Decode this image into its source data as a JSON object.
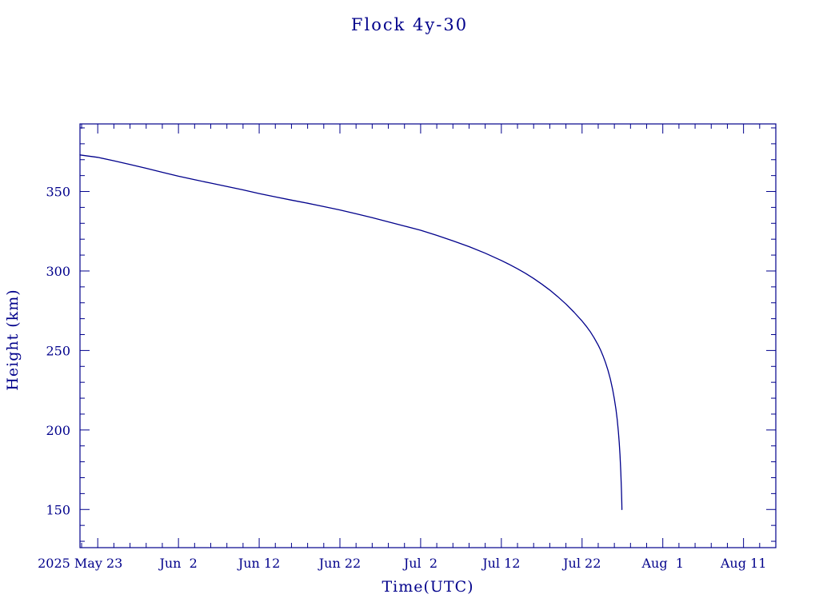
{
  "chart_data": {
    "type": "line",
    "title": "Flock 4y-30",
    "xlabel": "Time(UTC)",
    "ylabel": "Height (km)",
    "line_color": "#00008b",
    "axis_color": "#00008b",
    "background_color": "#ffffff",
    "grid": false,
    "legend": "none",
    "x_axis": {
      "tick_labels": [
        "2025 May 23",
        "Jun  2",
        "Jun 12",
        "Jun 22",
        "Jul  2",
        "Jul 12",
        "Jul 22",
        "Aug  1",
        "Aug 11"
      ],
      "tick_days": [
        0,
        10,
        20,
        30,
        40,
        50,
        60,
        70,
        80
      ],
      "minor_step_days": 2,
      "lim_days": [
        -2.2,
        84.0
      ]
    },
    "y_axis": {
      "tick_values": [
        150,
        200,
        250,
        300,
        350
      ],
      "minor_step": 10,
      "lim": [
        126,
        392.5
      ]
    },
    "series": [
      {
        "name": "height",
        "points_day_km": [
          [
            -2.2,
            373.0
          ],
          [
            0,
            371.5
          ],
          [
            2,
            369.3
          ],
          [
            4,
            367.0
          ],
          [
            6,
            364.6
          ],
          [
            8,
            362.1
          ],
          [
            10,
            359.6
          ],
          [
            12,
            357.4
          ],
          [
            14,
            355.3
          ],
          [
            16,
            353.2
          ],
          [
            18,
            351.0
          ],
          [
            20,
            348.7
          ],
          [
            22,
            346.6
          ],
          [
            24,
            344.6
          ],
          [
            26,
            342.6
          ],
          [
            28,
            340.5
          ],
          [
            30,
            338.4
          ],
          [
            32,
            336.0
          ],
          [
            34,
            333.5
          ],
          [
            36,
            330.9
          ],
          [
            38,
            328.3
          ],
          [
            40,
            325.6
          ],
          [
            42,
            322.4
          ],
          [
            44,
            319.0
          ],
          [
            46,
            315.3
          ],
          [
            48,
            311.2
          ],
          [
            50,
            306.6
          ],
          [
            51,
            304.1
          ],
          [
            52,
            301.4
          ],
          [
            53,
            298.5
          ],
          [
            54,
            295.3
          ],
          [
            55,
            291.8
          ],
          [
            56,
            288.0
          ],
          [
            57,
            283.8
          ],
          [
            58,
            279.2
          ],
          [
            59,
            274.1
          ],
          [
            60,
            268.5
          ],
          [
            60.5,
            265.4
          ],
          [
            61,
            261.9
          ],
          [
            61.5,
            257.9
          ],
          [
            62,
            253.3
          ],
          [
            62.3,
            250.2
          ],
          [
            62.6,
            246.6
          ],
          [
            62.9,
            242.5
          ],
          [
            63.2,
            237.7
          ],
          [
            63.5,
            232.1
          ],
          [
            63.8,
            225.2
          ],
          [
            64.0,
            219.6
          ],
          [
            64.2,
            212.8
          ],
          [
            64.35,
            206.6
          ],
          [
            64.5,
            198.7
          ],
          [
            64.6,
            192.2
          ],
          [
            64.7,
            184.2
          ],
          [
            64.8,
            173.5
          ],
          [
            64.88,
            162.0
          ],
          [
            64.92,
            155.0
          ],
          [
            64.94,
            150.0
          ]
        ]
      }
    ]
  }
}
